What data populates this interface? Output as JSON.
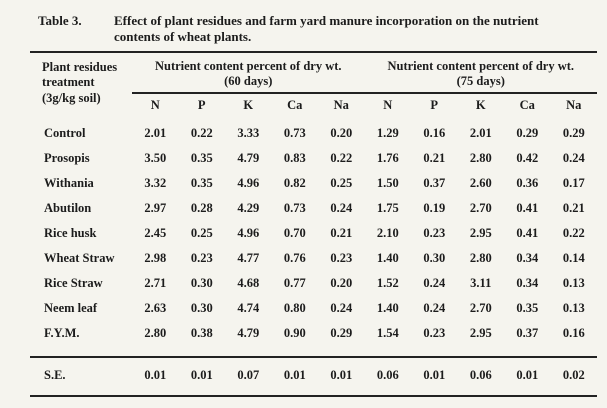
{
  "header": {
    "table_label": "Table 3.",
    "title_line1": "Effect of plant residues and farm yard manure incorporation on the nutrient",
    "title_line2": "contents of wheat plants."
  },
  "table": {
    "row_header_lines": [
      "Plant residues",
      "treatment",
      "(3g/kg soil)"
    ],
    "groups": [
      {
        "title": "Nutrient content percent of dry wt.",
        "subtitle": "(60 days)",
        "columns": [
          "N",
          "P",
          "K",
          "Ca",
          "Na"
        ]
      },
      {
        "title": "Nutrient content percent of dry wt.",
        "subtitle": "(75 days)",
        "columns": [
          "N",
          "P",
          "K",
          "Ca",
          "Na"
        ]
      }
    ],
    "rows": [
      {
        "label": "Control",
        "values": [
          "2.01",
          "0.22",
          "3.33",
          "0.73",
          "0.20",
          "1.29",
          "0.16",
          "2.01",
          "0.29",
          "0.29"
        ]
      },
      {
        "label": "Prosopis",
        "values": [
          "3.50",
          "0.35",
          "4.79",
          "0.83",
          "0.22",
          "1.76",
          "0.21",
          "2.80",
          "0.42",
          "0.24"
        ]
      },
      {
        "label": "Withania",
        "values": [
          "3.32",
          "0.35",
          "4.96",
          "0.82",
          "0.25",
          "1.50",
          "0.37",
          "2.60",
          "0.36",
          "0.17"
        ]
      },
      {
        "label": "Abutilon",
        "values": [
          "2.97",
          "0.28",
          "4.29",
          "0.73",
          "0.24",
          "1.75",
          "0.19",
          "2.70",
          "0.41",
          "0.21"
        ]
      },
      {
        "label": "Rice husk",
        "values": [
          "2.45",
          "0.25",
          "4.96",
          "0.70",
          "0.21",
          "2.10",
          "0.23",
          "2.95",
          "0.41",
          "0.22"
        ]
      },
      {
        "label": "Wheat Straw",
        "values": [
          "2.98",
          "0.23",
          "4.77",
          "0.76",
          "0.23",
          "1.40",
          "0.30",
          "2.80",
          "0.34",
          "0.14"
        ]
      },
      {
        "label": "Rice Straw",
        "values": [
          "2.71",
          "0.30",
          "4.68",
          "0.77",
          "0.20",
          "1.52",
          "0.24",
          "3.11",
          "0.34",
          "0.13"
        ]
      },
      {
        "label": "Neem leaf",
        "values": [
          "2.63",
          "0.30",
          "4.74",
          "0.80",
          "0.24",
          "1.40",
          "0.24",
          "2.70",
          "0.35",
          "0.13"
        ]
      },
      {
        "label": "F.Y.M.",
        "values": [
          "2.80",
          "0.38",
          "4.79",
          "0.90",
          "0.29",
          "1.54",
          "0.23",
          "2.95",
          "0.37",
          "0.16"
        ]
      }
    ],
    "se_row": {
      "label": "S.E.",
      "values": [
        "0.01",
        "0.01",
        "0.07",
        "0.01",
        "0.01",
        "0.06",
        "0.01",
        "0.06",
        "0.01",
        "0.02"
      ]
    }
  },
  "colors": {
    "page_background": "#f5f4ee",
    "rule": "#222222",
    "text": "#1c1c1c"
  }
}
